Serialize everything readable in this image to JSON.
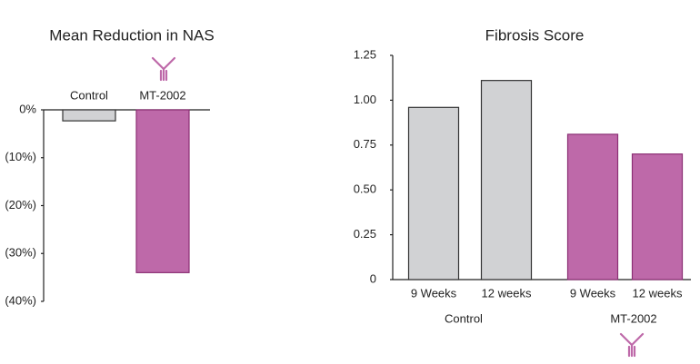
{
  "chart_data": [
    {
      "type": "bar",
      "title": "Mean Reduction in NAS",
      "categories": [
        "Control",
        "MT-2002"
      ],
      "values": [
        -2.3,
        -34
      ],
      "colors": [
        "#d1d2d4",
        "#be69a9"
      ],
      "ylim": [
        -40,
        0
      ],
      "yticks": [
        {
          "value": 0,
          "label": "0%"
        },
        {
          "value": -10,
          "label": "(10%)"
        },
        {
          "value": -20,
          "label": "(20%)"
        },
        {
          "value": -30,
          "label": "(30%)"
        },
        {
          "value": -40,
          "label": "(40%)"
        }
      ]
    },
    {
      "type": "bar",
      "title": "Fibrosis Score",
      "categories": [
        "9 Weeks",
        "12 weeks"
      ],
      "series": [
        {
          "name": "Control",
          "color": "#d1d2d4",
          "values": [
            0.96,
            1.11
          ]
        },
        {
          "name": "MT-2002",
          "color": "#be69a9",
          "values": [
            0.81,
            0.7
          ]
        }
      ],
      "ylim": [
        0,
        1.25
      ],
      "yticks": [
        0,
        0.25,
        {
          "value": 0.5,
          "label": "0.50"
        },
        0.75,
        {
          "value": 1,
          "label": "1.00"
        },
        1.25
      ]
    }
  ]
}
